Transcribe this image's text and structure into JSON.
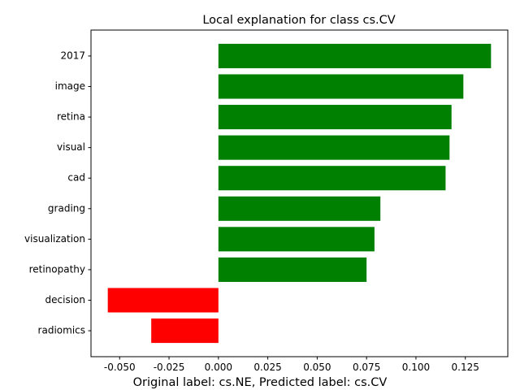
{
  "chart_data": {
    "type": "bar",
    "orientation": "horizontal",
    "title": "Local explanation for class cs.CV",
    "caption": "Original label: cs.NE, Predicted label: cs.CV",
    "categories": [
      "radiomics",
      "decision",
      "retinopathy",
      "visualization",
      "grading",
      "cad",
      "visual",
      "retina",
      "image",
      "2017"
    ],
    "values": [
      -0.034,
      -0.056,
      0.075,
      0.079,
      0.082,
      0.115,
      0.117,
      0.118,
      0.124,
      0.138
    ],
    "x_ticks": [
      "-0.050",
      "-0.025",
      "0.000",
      "0.025",
      "0.050",
      "0.075",
      "0.100",
      "0.125"
    ],
    "x_tick_values": [
      -0.05,
      -0.025,
      0,
      0.025,
      0.05,
      0.075,
      0.1,
      0.125
    ],
    "xlim": [
      -0.0645,
      0.1465
    ],
    "xlabel": "",
    "ylabel": "",
    "grid": false,
    "colors": {
      "positive": "#008000",
      "negative": "#ff0000",
      "axis": "#000000"
    }
  }
}
